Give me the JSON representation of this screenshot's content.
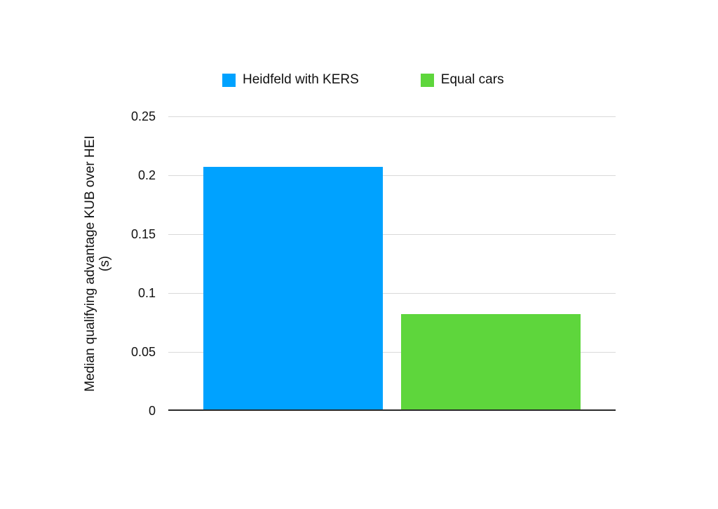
{
  "chart_data": {
    "type": "bar",
    "title": "",
    "categories": [
      "Heidfeld with KERS",
      "Equal cars"
    ],
    "series": [
      {
        "name": "Heidfeld with KERS",
        "value": 0.207,
        "color": "#00A2FF"
      },
      {
        "name": "Equal cars",
        "value": 0.082,
        "color": "#5ED63C"
      }
    ],
    "xlabel": "",
    "ylabel": "Median qualifying advantage KUB over HEI (s)",
    "ylabel_line1": "Median qualifying advantage KUB over HEI",
    "ylabel_line2": "(s)",
    "ylim": [
      0,
      0.25
    ],
    "yticks": [
      0,
      0.05,
      0.1,
      0.15,
      0.2,
      0.25
    ],
    "ytick_labels": [
      "0",
      "0.05",
      "0.1",
      "0.15",
      "0.2",
      "0.25"
    ],
    "grid": true,
    "legend_position": "top-center"
  },
  "colors": {
    "background": "#FFFFFF",
    "gridline": "#D9D9D9",
    "axis_line": "#2A2A2A",
    "text": "#111111"
  }
}
